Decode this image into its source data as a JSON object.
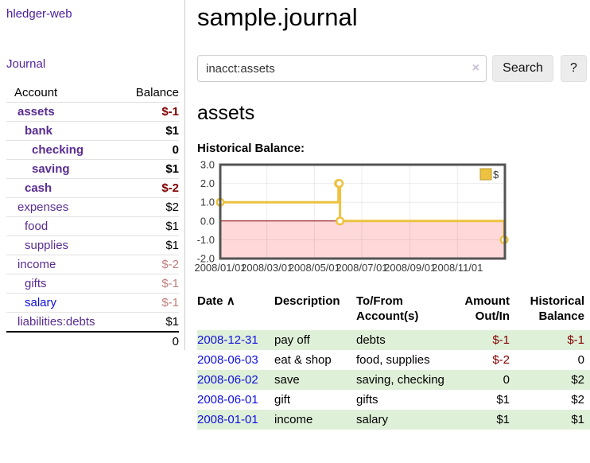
{
  "app": {
    "title": "hledger-web"
  },
  "colors": {
    "purple_link": "#5a2d91",
    "blue_link": "#0e0edd",
    "negative": "#800000",
    "dim_negative": "#c17d7d",
    "row_green": "#dff0d8"
  },
  "sidebar": {
    "journal_link": "Journal",
    "account_header": "Account",
    "balance_header": "Balance",
    "accounts": [
      {
        "name": "assets",
        "depth": 0,
        "bold": true,
        "balance": "$-1",
        "amount_class": "neg"
      },
      {
        "name": "bank",
        "depth": 1,
        "bold": true,
        "balance": "$1",
        "amount_class": "pos"
      },
      {
        "name": "checking",
        "depth": 2,
        "bold": true,
        "balance": "0",
        "amount_class": "pos"
      },
      {
        "name": "saving",
        "depth": 2,
        "bold": true,
        "balance": "$1",
        "amount_class": "pos"
      },
      {
        "name": "cash",
        "depth": 1,
        "bold": true,
        "balance": "$-2",
        "amount_class": "neg"
      },
      {
        "name": "expenses",
        "depth": 0,
        "bold": false,
        "balance": "$2",
        "amount_class": "pos"
      },
      {
        "name": "food",
        "depth": 1,
        "bold": false,
        "balance": "$1",
        "amount_class": "pos"
      },
      {
        "name": "supplies",
        "depth": 1,
        "bold": false,
        "balance": "$1",
        "amount_class": "pos"
      },
      {
        "name": "income",
        "depth": 0,
        "bold": false,
        "balance": "$-2",
        "amount_class": "dim-neg"
      },
      {
        "name": "gifts",
        "depth": 1,
        "bold": false,
        "balance": "$-1",
        "amount_class": "dim-neg"
      },
      {
        "name": "salary",
        "depth": 1,
        "bold": false,
        "balance": "$-1",
        "amount_class": "dim-neg",
        "link_state": "unvisited"
      },
      {
        "name": "liabilities:debts",
        "depth": 0,
        "bold": false,
        "balance": "$1",
        "amount_class": "pos"
      }
    ],
    "total": "0"
  },
  "main": {
    "title": "sample.journal",
    "search": {
      "value": "inacct:assets",
      "clear_icon": "×",
      "button": "Search",
      "help_button": "?"
    },
    "account_title": "assets",
    "chart_label": "Historical Balance:",
    "register": {
      "headers": {
        "date": "Date",
        "sort_icon": "∧",
        "description": "Description",
        "account": "To/From Account(s)",
        "amount": "Amount Out/In",
        "balance": "Historical Balance"
      },
      "rows": [
        {
          "date": "2008-12-31",
          "description": "pay off",
          "accounts": "debts",
          "amount": "$-1",
          "amount_class": "neg",
          "balance": "$-1",
          "balance_class": "neg"
        },
        {
          "date": "2008-06-03",
          "description": "eat & shop",
          "accounts": "food, supplies",
          "amount": "$-2",
          "amount_class": "neg",
          "balance": "0",
          "balance_class": "pos"
        },
        {
          "date": "2008-06-02",
          "description": "save",
          "accounts": "saving, checking",
          "amount": "0",
          "amount_class": "pos",
          "balance": "$2",
          "balance_class": "pos"
        },
        {
          "date": "2008-06-01",
          "description": "gift",
          "accounts": "gifts",
          "amount": "$1",
          "amount_class": "pos",
          "balance": "$2",
          "balance_class": "pos"
        },
        {
          "date": "2008-01-01",
          "description": "income",
          "accounts": "salary",
          "amount": "$1",
          "amount_class": "pos",
          "balance": "$1",
          "balance_class": "pos"
        }
      ]
    }
  },
  "chart_data": {
    "type": "line",
    "title": "Historical Balance:",
    "step": true,
    "series": [
      {
        "name": "$",
        "points": [
          [
            "2008-01-01",
            1
          ],
          [
            "2008-06-01",
            2
          ],
          [
            "2008-06-02",
            2
          ],
          [
            "2008-06-03",
            0
          ],
          [
            "2008-12-31",
            -1
          ]
        ]
      }
    ],
    "x_ticks": [
      "2008/01/01",
      "2008/03/01",
      "2008/05/01",
      "2008/07/01",
      "2008/09/01",
      "2008/11/01"
    ],
    "y_ticks": [
      3.0,
      2.0,
      1.0,
      0.0,
      -1.0,
      -2.0
    ],
    "xlim": [
      "2008-01-01",
      "2009-01-01"
    ],
    "ylim": [
      -2,
      3
    ],
    "grid": true,
    "legend": {
      "label": "$",
      "position": "top-right"
    },
    "colors": {
      "line": "#EDC240",
      "legend_border": "#bf9b30",
      "negative_region": "#ffd9d9",
      "zero_line": "#8b0000",
      "border": "#545454"
    }
  }
}
